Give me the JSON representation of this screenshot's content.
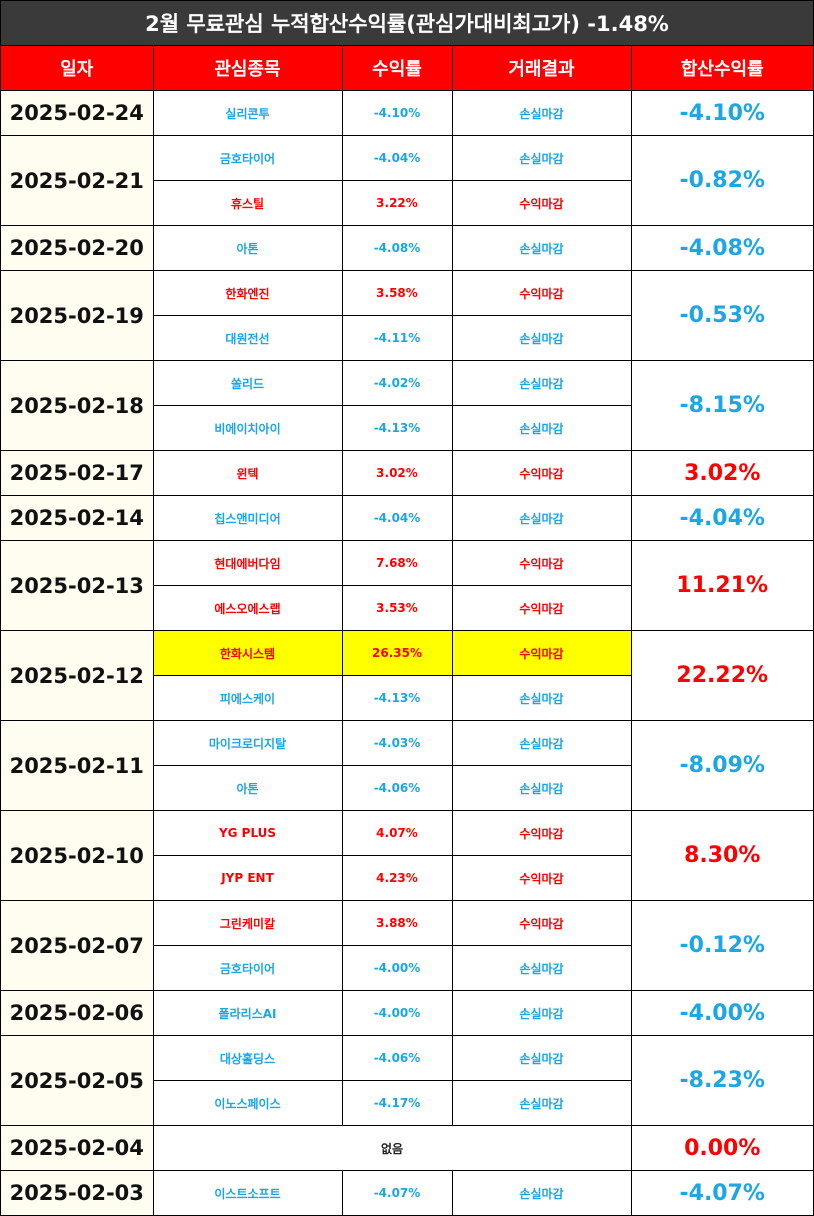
{
  "title": "2월 무료관심 누적합산수익률(관심가대비최고가) -1.48%",
  "headers": [
    "일자",
    "관심종목",
    "수익률",
    "거래결과",
    "합산수익률"
  ],
  "colors": {
    "loss": "#1ba6e6",
    "profit": "#ff0000",
    "highlight": "#ffff00",
    "header_bg": "#ff0000",
    "title_bg": "#3a3a3a"
  },
  "groups": [
    {
      "date": "2025-02-24",
      "total": "-4.10%",
      "total_color": "blue",
      "rows": [
        {
          "stock": "실리콘투",
          "rate": "-4.10%",
          "result": "손실마감",
          "color": "blue"
        }
      ]
    },
    {
      "date": "2025-02-21",
      "total": "-0.82%",
      "total_color": "blue",
      "rows": [
        {
          "stock": "금호타이어",
          "rate": "-4.04%",
          "result": "손실마감",
          "color": "blue"
        },
        {
          "stock": "휴스틸",
          "rate": "3.22%",
          "result": "수익마감",
          "color": "red"
        }
      ]
    },
    {
      "date": "2025-02-20",
      "total": "-4.08%",
      "total_color": "blue",
      "rows": [
        {
          "stock": "아톤",
          "rate": "-4.08%",
          "result": "손실마감",
          "color": "blue"
        }
      ]
    },
    {
      "date": "2025-02-19",
      "total": "-0.53%",
      "total_color": "blue",
      "rows": [
        {
          "stock": "한화엔진",
          "rate": "3.58%",
          "result": "수익마감",
          "color": "red"
        },
        {
          "stock": "대원전선",
          "rate": "-4.11%",
          "result": "손실마감",
          "color": "blue"
        }
      ]
    },
    {
      "date": "2025-02-18",
      "total": "-8.15%",
      "total_color": "blue",
      "rows": [
        {
          "stock": "쏠리드",
          "rate": "-4.02%",
          "result": "손실마감",
          "color": "blue"
        },
        {
          "stock": "비에이치아이",
          "rate": "-4.13%",
          "result": "손실마감",
          "color": "blue"
        }
      ]
    },
    {
      "date": "2025-02-17",
      "total": "3.02%",
      "total_color": "red",
      "rows": [
        {
          "stock": "윈텍",
          "rate": "3.02%",
          "result": "수익마감",
          "color": "red"
        }
      ]
    },
    {
      "date": "2025-02-14",
      "total": "-4.04%",
      "total_color": "blue",
      "rows": [
        {
          "stock": "칩스앤미디어",
          "rate": "-4.04%",
          "result": "손실마감",
          "color": "blue"
        }
      ]
    },
    {
      "date": "2025-02-13",
      "total": "11.21%",
      "total_color": "red",
      "rows": [
        {
          "stock": "현대에버다임",
          "rate": "7.68%",
          "result": "수익마감",
          "color": "red"
        },
        {
          "stock": "에스오에스랩",
          "rate": "3.53%",
          "result": "수익마감",
          "color": "red"
        }
      ]
    },
    {
      "date": "2025-02-12",
      "total": "22.22%",
      "total_color": "red",
      "rows": [
        {
          "stock": "한화시스템",
          "rate": "26.35%",
          "result": "수익마감",
          "color": "red",
          "highlight": true
        },
        {
          "stock": "피에스케이",
          "rate": "-4.13%",
          "result": "손실마감",
          "color": "blue"
        }
      ]
    },
    {
      "date": "2025-02-11",
      "total": "-8.09%",
      "total_color": "blue",
      "rows": [
        {
          "stock": "마이크로디지탈",
          "rate": "-4.03%",
          "result": "손실마감",
          "color": "blue"
        },
        {
          "stock": "아톤",
          "rate": "-4.06%",
          "result": "손실마감",
          "color": "blue"
        }
      ]
    },
    {
      "date": "2025-02-10",
      "total": "8.30%",
      "total_color": "red",
      "rows": [
        {
          "stock": "YG PLUS",
          "rate": "4.07%",
          "result": "수익마감",
          "color": "red"
        },
        {
          "stock": "JYP ENT",
          "rate": "4.23%",
          "result": "수익마감",
          "color": "red"
        }
      ]
    },
    {
      "date": "2025-02-07",
      "total": "-0.12%",
      "total_color": "blue",
      "rows": [
        {
          "stock": "그린케미칼",
          "rate": "3.88%",
          "result": "수익마감",
          "color": "red"
        },
        {
          "stock": "금호타이어",
          "rate": "-4.00%",
          "result": "손실마감",
          "color": "blue"
        }
      ]
    },
    {
      "date": "2025-02-06",
      "total": "-4.00%",
      "total_color": "blue",
      "rows": [
        {
          "stock": "폴라리스AI",
          "rate": "-4.00%",
          "result": "손실마감",
          "color": "blue"
        }
      ]
    },
    {
      "date": "2025-02-05",
      "total": "-8.23%",
      "total_color": "blue",
      "rows": [
        {
          "stock": "대상홀딩스",
          "rate": "-4.06%",
          "result": "손실마감",
          "color": "blue"
        },
        {
          "stock": "이노스페이스",
          "rate": "-4.17%",
          "result": "손실마감",
          "color": "blue"
        }
      ]
    },
    {
      "date": "2025-02-04",
      "total": "0.00%",
      "total_color": "red",
      "none_text": "없음",
      "rows": []
    },
    {
      "date": "2025-02-03",
      "total": "-4.07%",
      "total_color": "blue",
      "rows": [
        {
          "stock": "이스트소프트",
          "rate": "-4.07%",
          "result": "손실마감",
          "color": "blue"
        }
      ]
    }
  ]
}
